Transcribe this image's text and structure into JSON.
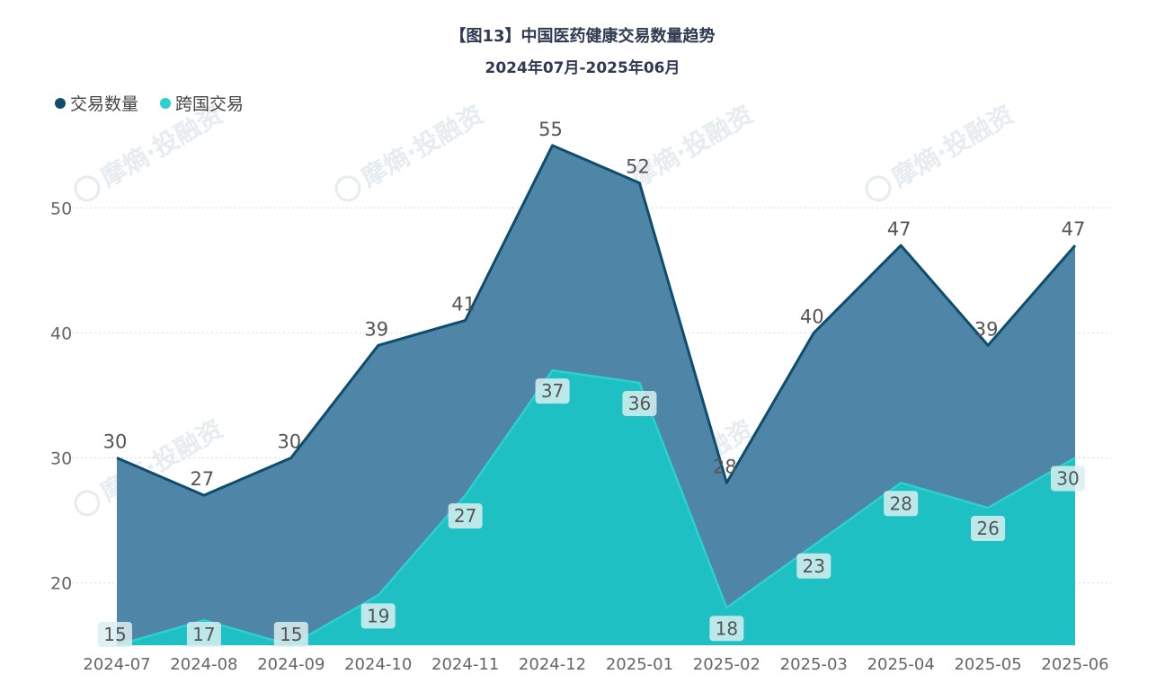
{
  "chart_data": {
    "type": "area",
    "title": "【图13】中国医药健康交易数量趋势",
    "subtitle": "2024年07月-2025年06月",
    "watermark": "摩熵·投融资",
    "categories": [
      "2024-07",
      "2024-08",
      "2024-09",
      "2024-10",
      "2024-11",
      "2024-12",
      "2025-01",
      "2025-02",
      "2025-03",
      "2025-04",
      "2025-05",
      "2025-06"
    ],
    "series": [
      {
        "name": "交易数量",
        "color": "#0e4d6e",
        "fill": "#4f86a8",
        "values": [
          30,
          27,
          30,
          39,
          41,
          55,
          52,
          28,
          40,
          47,
          39,
          47
        ]
      },
      {
        "name": "跨国交易",
        "color": "#2ad1cf",
        "fill": "#1fc0c3",
        "values": [
          15,
          17,
          15,
          19,
          27,
          37,
          36,
          18,
          23,
          28,
          26,
          30
        ]
      }
    ],
    "y_ticks": [
      20,
      30,
      40,
      50
    ],
    "ylim": [
      15,
      56.5
    ],
    "grid": true,
    "legend_position": "top-left"
  }
}
